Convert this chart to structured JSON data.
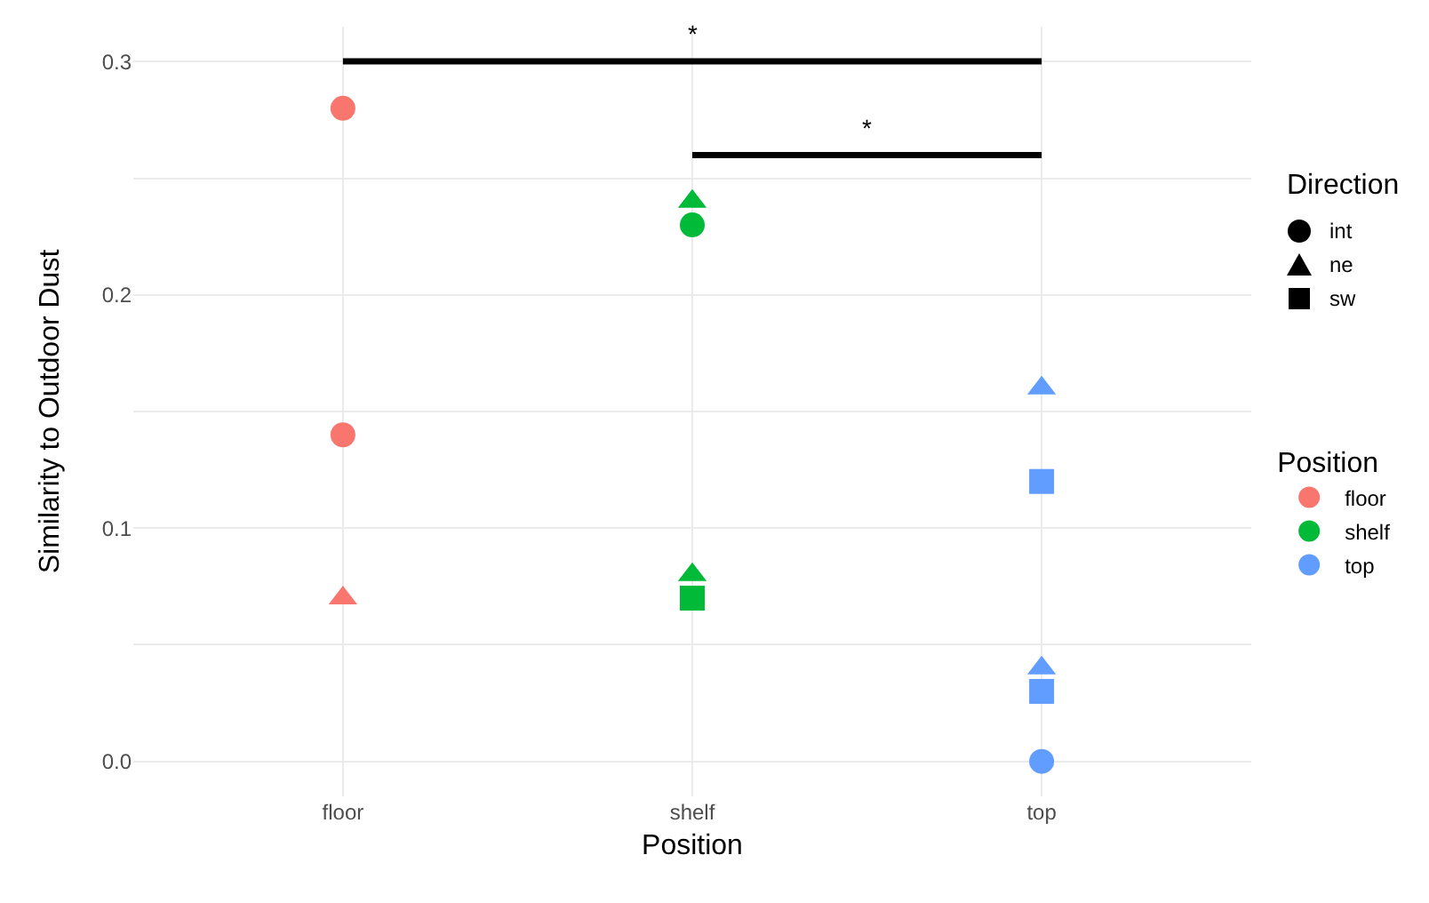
{
  "chart_data": {
    "type": "scatter",
    "xlabel": "Position",
    "ylabel": "Similarity to Outdoor Dust",
    "legend_title": "Position",
    "categories": [
      "floor",
      "shelf",
      "top"
    ],
    "series": [
      {
        "name": "floor",
        "marker": "circle",
        "color": "#f8766d",
        "x": [
          "floor",
          "floor"
        ],
        "values": [
          0.28,
          0.14
        ]
      },
      {
        "marker": "triangle",
        "color": "#f8766d",
        "x": [
          "floor"
        ],
        "values": [
          0.07
        ]
      },
      {
        "name": "shelf",
        "marker": "circle",
        "color": "#00ba38",
        "x": [
          "shelf"
        ],
        "values": [
          0.23
        ]
      },
      {
        "marker": "triangle",
        "color": "#00ba38",
        "x": [
          "shelf",
          "shelf"
        ],
        "values": [
          0.24,
          0.08
        ]
      },
      {
        "marker": "square",
        "color": "#00ba38",
        "x": [
          "shelf"
        ],
        "values": [
          0.07
        ]
      },
      {
        "name": "top",
        "marker": "circle",
        "color": "#619cff",
        "x": [
          "top"
        ],
        "values": [
          0.0
        ]
      },
      {
        "marker": "triangle",
        "color": "#619cff",
        "x": [
          "top",
          "top"
        ],
        "values": [
          0.16,
          0.04
        ]
      },
      {
        "marker": "square",
        "color": "#619cff",
        "x": [
          "top",
          "top"
        ],
        "values": [
          0.12,
          0.03
        ]
      }
    ],
    "annotations": [
      "*",
      "*",
      "Direction",
      "int",
      "ne",
      "sw"
    ],
    "ylim": [
      -0.015,
      0.315
    ],
    "yticks": [
      {
        "value": 0.0,
        "label": "0.0"
      },
      {
        "value": 0.05,
        "label": null
      },
      0.1,
      {
        "value": 0.15,
        "label": null
      },
      0.2,
      {
        "value": 0.25,
        "label": null
      },
      0.3
    ],
    "grid": true,
    "legend": "right"
  }
}
